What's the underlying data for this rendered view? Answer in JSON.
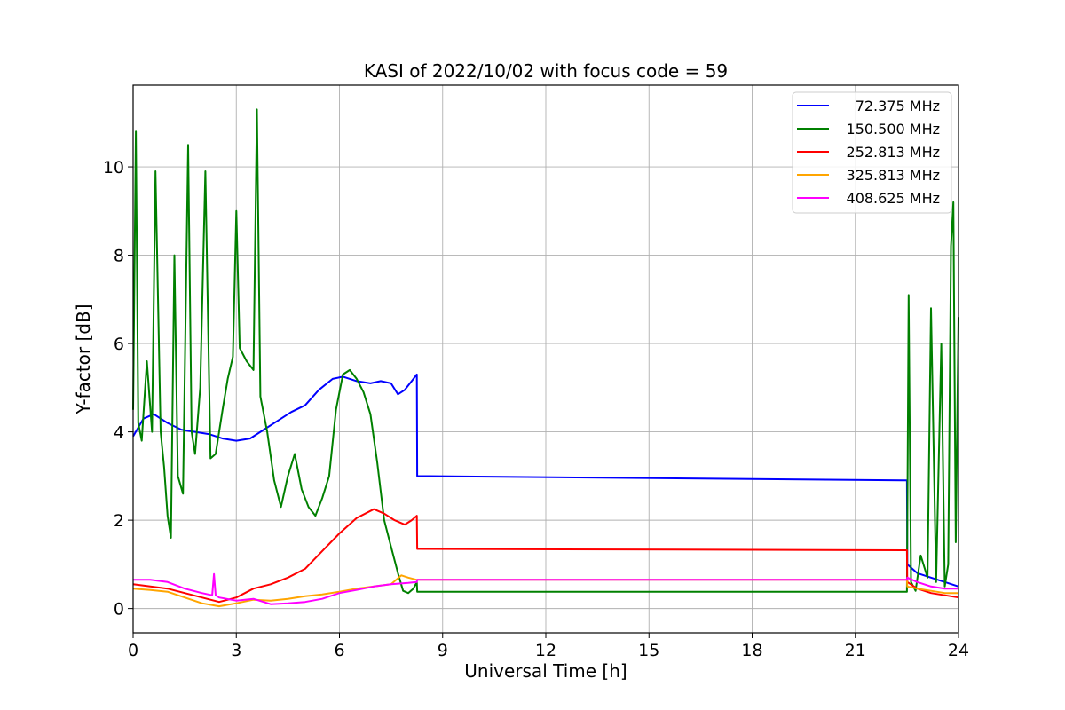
{
  "chart_data": {
    "type": "line",
    "title": "KASI of 2022/10/02 with focus code = 59",
    "xlabel": "Universal Time [h]",
    "ylabel": "Y-factor [dB]",
    "xlim": [
      0,
      24
    ],
    "ylim": [
      -0.55,
      11.85
    ],
    "xticks": [
      0,
      3,
      6,
      9,
      12,
      15,
      18,
      21,
      24
    ],
    "yticks": [
      0,
      2,
      4,
      6,
      8,
      10
    ],
    "grid": true,
    "legend_position": "top-right",
    "series": [
      {
        "name": "72.375 MHz",
        "color": "#0000ff",
        "x": [
          0,
          0.3,
          0.6,
          1.0,
          1.4,
          1.8,
          2.2,
          2.6,
          3.0,
          3.4,
          3.8,
          4.2,
          4.6,
          5.0,
          5.4,
          5.8,
          6.1,
          6.5,
          6.9,
          7.2,
          7.5,
          7.7,
          7.9,
          8.1,
          8.25,
          8.26,
          22.5,
          22.51,
          22.8,
          23.2,
          23.6,
          24.0
        ],
        "y": [
          3.9,
          4.3,
          4.4,
          4.2,
          4.05,
          4.0,
          3.95,
          3.85,
          3.8,
          3.85,
          4.05,
          4.25,
          4.45,
          4.6,
          4.95,
          5.2,
          5.25,
          5.15,
          5.1,
          5.15,
          5.1,
          4.85,
          4.95,
          5.15,
          5.3,
          3.0,
          2.9,
          1.0,
          0.8,
          0.7,
          0.6,
          0.5
        ]
      },
      {
        "name": "150.500 MHz",
        "color": "#008000",
        "x": [
          0,
          0.08,
          0.15,
          0.25,
          0.4,
          0.55,
          0.65,
          0.8,
          0.9,
          1.0,
          1.1,
          1.2,
          1.3,
          1.45,
          1.6,
          1.7,
          1.8,
          1.95,
          2.1,
          2.25,
          2.4,
          2.6,
          2.75,
          2.9,
          3.0,
          3.1,
          3.3,
          3.5,
          3.6,
          3.7,
          3.9,
          4.1,
          4.3,
          4.5,
          4.7,
          4.9,
          5.1,
          5.3,
          5.5,
          5.7,
          5.9,
          6.1,
          6.3,
          6.5,
          6.7,
          6.9,
          7.1,
          7.3,
          7.5,
          7.7,
          7.85,
          8.0,
          8.15,
          8.25,
          8.26,
          22.5,
          22.55,
          22.62,
          22.75,
          22.9,
          23.1,
          23.2,
          23.35,
          23.5,
          23.6,
          23.7,
          23.78,
          23.85,
          23.92,
          24.0
        ],
        "y": [
          4.5,
          10.8,
          4.2,
          3.8,
          5.6,
          4.0,
          9.9,
          4.0,
          3.2,
          2.1,
          1.6,
          8.0,
          3.0,
          2.6,
          10.5,
          4.0,
          3.5,
          5.0,
          9.9,
          3.4,
          3.5,
          4.5,
          5.2,
          5.7,
          9.0,
          5.9,
          5.6,
          5.4,
          11.3,
          4.8,
          4.0,
          2.9,
          2.3,
          3.0,
          3.5,
          2.7,
          2.3,
          2.1,
          2.5,
          3.0,
          4.5,
          5.3,
          5.4,
          5.2,
          4.9,
          4.4,
          3.3,
          2.0,
          1.4,
          0.8,
          0.4,
          0.35,
          0.45,
          0.6,
          0.38,
          0.38,
          7.1,
          0.6,
          0.4,
          1.2,
          0.7,
          6.8,
          0.6,
          6.0,
          0.5,
          1.0,
          8.2,
          9.2,
          1.5,
          6.6
        ]
      },
      {
        "name": "252.813 MHz",
        "color": "#ff0000",
        "x": [
          0,
          0.5,
          1.0,
          1.5,
          2.0,
          2.5,
          3.0,
          3.5,
          4.0,
          4.5,
          5.0,
          5.5,
          6.0,
          6.5,
          7.0,
          7.3,
          7.6,
          7.9,
          8.1,
          8.25,
          8.26,
          22.5,
          22.51,
          22.8,
          23.2,
          23.6,
          24.0
        ],
        "y": [
          0.55,
          0.5,
          0.45,
          0.35,
          0.25,
          0.15,
          0.25,
          0.45,
          0.55,
          0.7,
          0.9,
          1.3,
          1.7,
          2.05,
          2.25,
          2.15,
          2.0,
          1.9,
          2.0,
          2.1,
          1.35,
          1.32,
          0.6,
          0.45,
          0.35,
          0.3,
          0.25
        ]
      },
      {
        "name": "325.813 MHz",
        "color": "#ffa500",
        "x": [
          0,
          0.5,
          1.0,
          1.5,
          2.0,
          2.5,
          3.0,
          3.5,
          4.0,
          4.5,
          5.0,
          5.5,
          6.0,
          6.5,
          7.0,
          7.5,
          7.8,
          8.0,
          8.25,
          8.26,
          22.5,
          22.51,
          22.8,
          23.2,
          23.6,
          24.0
        ],
        "y": [
          0.45,
          0.42,
          0.38,
          0.25,
          0.12,
          0.05,
          0.12,
          0.2,
          0.18,
          0.22,
          0.28,
          0.32,
          0.38,
          0.45,
          0.5,
          0.55,
          0.75,
          0.7,
          0.65,
          0.65,
          0.65,
          0.5,
          0.45,
          0.4,
          0.35,
          0.35
        ]
      },
      {
        "name": "408.625 MHz",
        "color": "#ff00ff",
        "x": [
          0,
          0.5,
          1.0,
          1.5,
          2.0,
          2.3,
          2.35,
          2.4,
          2.5,
          3.0,
          3.5,
          4.0,
          4.5,
          5.0,
          5.5,
          6.0,
          6.5,
          7.0,
          7.5,
          8.0,
          8.25,
          8.26,
          22.5,
          22.51,
          22.8,
          23.2,
          23.6,
          24.0
        ],
        "y": [
          0.65,
          0.65,
          0.6,
          0.45,
          0.35,
          0.3,
          0.78,
          0.3,
          0.25,
          0.18,
          0.22,
          0.1,
          0.12,
          0.15,
          0.22,
          0.35,
          0.42,
          0.5,
          0.55,
          0.58,
          0.6,
          0.65,
          0.65,
          0.7,
          0.6,
          0.5,
          0.45,
          0.45
        ]
      }
    ]
  }
}
